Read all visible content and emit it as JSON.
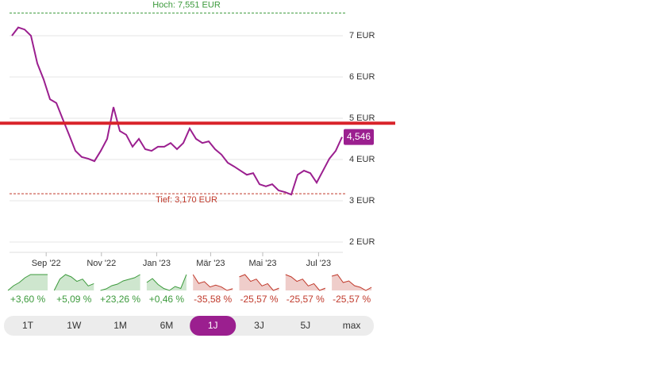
{
  "chart_data": {
    "type": "line",
    "series": [
      {
        "color": "#9b1f8f",
        "values": [
          7.0,
          7.2,
          7.15,
          7.0,
          6.33,
          5.94,
          5.46,
          5.37,
          4.98,
          4.6,
          4.21,
          4.06,
          4.02,
          3.96,
          4.21,
          4.5,
          5.27,
          4.69,
          4.6,
          4.31,
          4.5,
          4.25,
          4.21,
          4.31,
          4.31,
          4.4,
          4.25,
          4.4,
          4.75,
          4.5,
          4.4,
          4.44,
          4.25,
          4.12,
          3.92,
          3.83,
          3.73,
          3.63,
          3.67,
          3.4,
          3.35,
          3.4,
          3.25,
          3.21,
          3.15,
          3.63,
          3.73,
          3.67,
          3.44,
          3.73,
          4.02,
          4.21,
          4.546
        ]
      }
    ],
    "xlim": [
      0,
      52
    ],
    "xticks": [
      {
        "value": 5.4,
        "label": "Sep '22"
      },
      {
        "value": 14.1,
        "label": "Nov '22"
      },
      {
        "value": 22.8,
        "label": "Jan '23"
      },
      {
        "value": 31.3,
        "label": "Mär '23"
      },
      {
        "value": 39.5,
        "label": "Mai '23"
      },
      {
        "value": 48.3,
        "label": "Jul '23"
      }
    ],
    "ylim": [
      1.75,
      7.7
    ],
    "yticks": [
      {
        "value": 2,
        "label": "2 EUR"
      },
      {
        "value": 3,
        "label": "3 EUR"
      },
      {
        "value": 4,
        "label": "4 EUR"
      },
      {
        "value": 5,
        "label": "5 EUR"
      },
      {
        "value": 6,
        "label": "6 EUR"
      },
      {
        "value": 7,
        "label": "7 EUR"
      }
    ],
    "grid": true,
    "high": {
      "value": 7.551,
      "label": "Hoch: 7,551 EUR",
      "color": "#3c9a3c"
    },
    "low": {
      "value": 3.17,
      "label": "Tief: 3,170 EUR",
      "color": "#c0392b"
    },
    "marker_line": {
      "value": 4.88,
      "color": "#d9232a"
    },
    "current": {
      "value": 4.546,
      "label": "4,546"
    },
    "performance": [
      {
        "label": "+3,60 %",
        "value": 3.6,
        "color": "#3c9a3c",
        "spark": [
          0,
          0.3,
          0.5,
          0.8,
          1,
          1,
          1,
          1
        ]
      },
      {
        "label": "+5,09 %",
        "value": 5.09,
        "color": "#3c9a3c",
        "spark": [
          0.3,
          0.8,
          1,
          0.9,
          0.7,
          0.8,
          0.5,
          0.6
        ]
      },
      {
        "label": "+23,26 %",
        "value": 23.26,
        "color": "#3c9a3c",
        "spark": [
          0,
          0.1,
          0.3,
          0.4,
          0.6,
          0.7,
          0.8,
          1
        ]
      },
      {
        "label": "+0,46 %",
        "value": 0.46,
        "color": "#3c9a3c",
        "spark": [
          0.6,
          0.8,
          0.5,
          0.3,
          0.2,
          0.4,
          0.3,
          1
        ]
      },
      {
        "label": "-35,58 %",
        "value": -35.58,
        "color": "#c0392b",
        "spark": [
          1,
          0.5,
          0.6,
          0.3,
          0.4,
          0.3,
          0.1,
          0.2
        ]
      },
      {
        "label": "-25,57 %",
        "value": -25.57,
        "color": "#c0392b",
        "spark": [
          0.9,
          1,
          0.7,
          0.8,
          0.5,
          0.6,
          0.3,
          0.4
        ]
      },
      {
        "label": "-25,57 %",
        "value": -25.57,
        "color": "#c0392b",
        "spark": [
          1,
          0.9,
          0.7,
          0.8,
          0.5,
          0.6,
          0.3,
          0.4
        ]
      },
      {
        "label": "-25,57 %",
        "value": -25.57,
        "color": "#c0392b",
        "spark": [
          0.9,
          1,
          0.5,
          0.6,
          0.3,
          0.2,
          0,
          0.2
        ]
      }
    ],
    "periods": [
      "1T",
      "1W",
      "1M",
      "6M",
      "1J",
      "3J",
      "5J",
      "max"
    ],
    "active_period": 4
  }
}
